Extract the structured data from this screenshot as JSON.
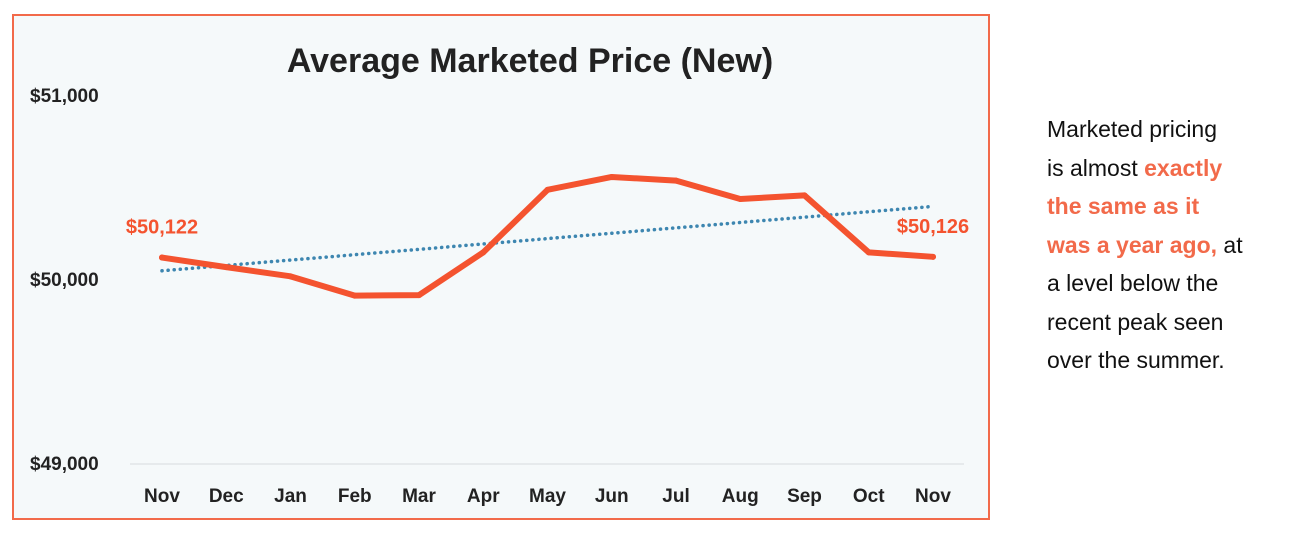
{
  "chart_data": {
    "type": "line",
    "title": "Average Marketed Price (New)",
    "xlabel": "",
    "ylabel": "",
    "categories": [
      "Nov",
      "Dec",
      "Jan",
      "Feb",
      "Mar",
      "Apr",
      "May",
      "Jun",
      "Jul",
      "Aug",
      "Sep",
      "Oct",
      "Nov"
    ],
    "series": [
      {
        "values": [
          50122,
          50070,
          50020,
          49915,
          49918,
          50150,
          50490,
          50560,
          50540,
          50440,
          50460,
          50150,
          50126
        ]
      }
    ],
    "trendline": {
      "style": "dotted",
      "start": 50050,
      "end": 50400
    },
    "ylim": [
      49000,
      51000
    ],
    "yticks": [
      "$49,000",
      "$50,000",
      "$51,000"
    ],
    "yticks_values": [
      49000,
      50000,
      51000
    ],
    "annotations": [
      {
        "text": "$50,122",
        "index": 0
      },
      {
        "text": "$50,126",
        "index": 12
      }
    ],
    "grid": false,
    "colors": {
      "line": "#f4532f",
      "trend": "#3d86b0",
      "annotation": "#f4532f",
      "border": "#f26a4a",
      "background": "#f5f9fa"
    }
  },
  "note": {
    "line1": "Marketed pricing",
    "line2a": "is almost ",
    "line2b": "exactly",
    "line3": "the same as it",
    "line4a": "was a year ago,",
    "line4b": " at",
    "line5": "a level below the",
    "line6": "recent peak seen",
    "line7": "over the summer."
  }
}
